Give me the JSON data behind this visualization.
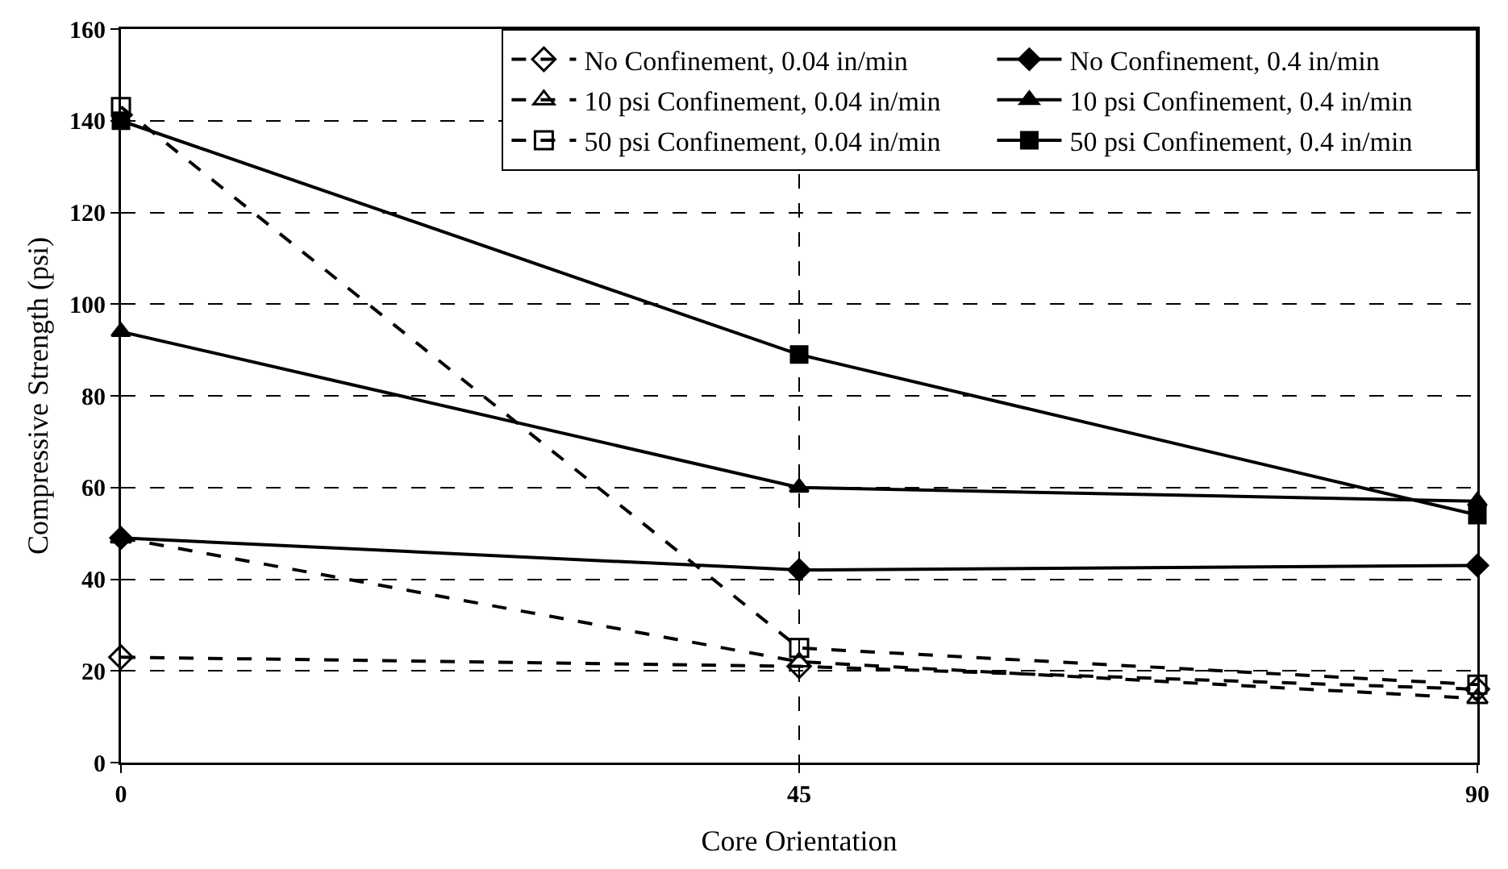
{
  "chart_data": {
    "type": "line",
    "xlabel": "Core Orientation",
    "ylabel": "Compressive Strength (psi)",
    "x": [
      0,
      45,
      90
    ],
    "xlim": [
      0,
      90
    ],
    "xticks": [
      0,
      45,
      90
    ],
    "ylim": [
      0,
      160
    ],
    "yticks": [
      0,
      20,
      40,
      60,
      80,
      100,
      120,
      140,
      160
    ],
    "grid": true,
    "legend": "top right",
    "series": [
      {
        "name": "No Confinement, 0.04 in/min",
        "color": "#000000",
        "values": [
          23,
          21,
          16
        ],
        "marker": "diamond",
        "line_style": "dashed"
      },
      {
        "name": "No Confinement, 0.4 in/min",
        "color": "#000000",
        "values": [
          49,
          42,
          43
        ],
        "marker": "diamond",
        "line_style": "solid"
      },
      {
        "name": "10 psi Confinement, 0.04 in/min",
        "color": "#000000",
        "values": [
          49,
          22,
          14
        ],
        "marker": "triangle",
        "line_style": "dashed"
      },
      {
        "name": "10 psi Confinement, 0.4 in/min",
        "color": "#000000",
        "values": [
          94,
          60,
          57
        ],
        "marker": "triangle",
        "line_style": "solid"
      },
      {
        "name": "50 psi Confinement, 0.04 in/min",
        "color": "#000000",
        "values": [
          143,
          25,
          17
        ],
        "marker": "square",
        "line_style": "dashed"
      },
      {
        "name": "50 psi Confinement, 0.4 in/min",
        "color": "#000000",
        "values": [
          140,
          89,
          54
        ],
        "marker": "square",
        "line_style": "solid"
      }
    ]
  }
}
